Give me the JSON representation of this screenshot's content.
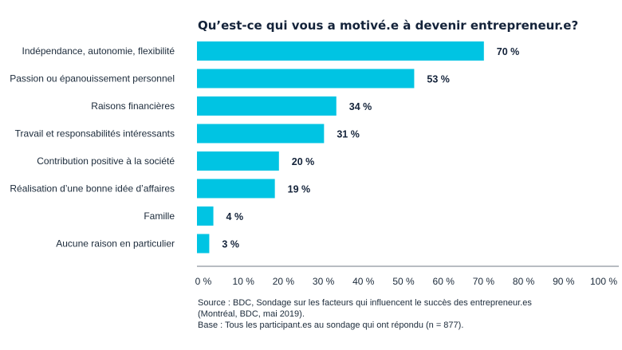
{
  "chart_data": {
    "type": "bar",
    "orientation": "horizontal",
    "title": "Qu’est-ce qui vous a motivé.e à devenir entrepreneur.e?",
    "categories": [
      "Indépendance, autonomie, flexibilité",
      "Passion ou épanouissement personnel",
      "Raisons financières",
      "Travail et responsabilités intéressants",
      "Contribution positive à la société",
      "Réalisation d’une bonne idée d’affaires",
      "Famille",
      "Aucune raison en particulier"
    ],
    "values": [
      70,
      53,
      34,
      31,
      20,
      19,
      4,
      3
    ],
    "value_labels": [
      "70 %",
      "53 %",
      "34 %",
      "31 %",
      "20 %",
      "19 %",
      "4 %",
      "3 %"
    ],
    "xlim": [
      0,
      100
    ],
    "xticks": [
      0,
      10,
      20,
      30,
      40,
      50,
      60,
      70,
      80,
      90,
      100
    ],
    "xtick_labels": [
      "0 %",
      "10 %",
      "20 %",
      "30 %",
      "40 %",
      "50 %",
      "60 %",
      "70 %",
      "80 %",
      "90 %",
      "100 %"
    ],
    "xlabel": "",
    "ylabel": "",
    "grid": false,
    "bar_color": "#00c4e3",
    "axis_color": "#b8bcc2"
  },
  "source": {
    "line1": "Source : BDC, Sondage sur les facteurs qui influencent le succès des entrepreneur.es",
    "line2": "(Montréal, BDC, mai 2019).",
    "line3": "Base : Tous les participant.es au sondage qui ont répondu (n = 877)."
  }
}
